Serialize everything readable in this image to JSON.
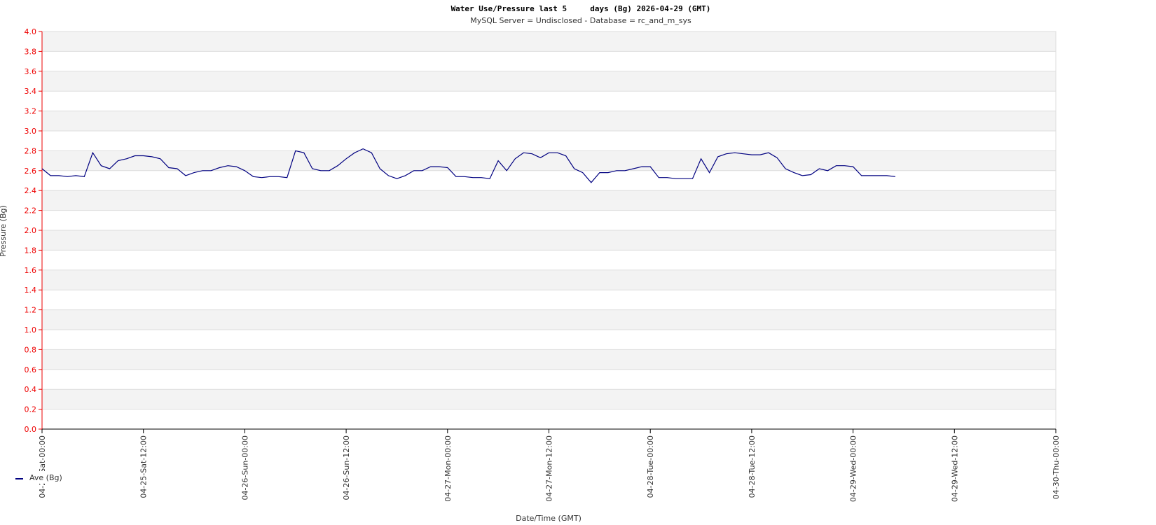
{
  "chart_data": {
    "type": "line",
    "title": "Water Use/Pressure last 5     days (Bg) 2026-04-29 (GMT)",
    "subtitle": "MySQL Server = Undisclosed - Database = rc_and_m_sys",
    "ylabel": "Pressure (Bg)",
    "xlabel": "Date/Time (GMT)",
    "x": [
      "04-25-Sat-00:00",
      "04-25-Sat-01:00",
      "04-25-Sat-02:00",
      "04-25-Sat-03:00",
      "04-25-Sat-04:00",
      "04-25-Sat-05:00",
      "04-25-Sat-06:00",
      "04-25-Sat-07:00",
      "04-25-Sat-08:00",
      "04-25-Sat-09:00",
      "04-25-Sat-10:00",
      "04-25-Sat-11:00",
      "04-25-Sat-12:00",
      "04-25-Sat-13:00",
      "04-25-Sat-14:00",
      "04-25-Sat-15:00",
      "04-25-Sat-16:00",
      "04-25-Sat-17:00",
      "04-25-Sat-18:00",
      "04-25-Sat-19:00",
      "04-25-Sat-20:00",
      "04-25-Sat-21:00",
      "04-25-Sat-22:00",
      "04-25-Sat-23:00",
      "04-26-Sun-00:00",
      "04-26-Sun-01:00",
      "04-26-Sun-02:00",
      "04-26-Sun-03:00",
      "04-26-Sun-04:00",
      "04-26-Sun-05:00",
      "04-26-Sun-06:00",
      "04-26-Sun-07:00",
      "04-26-Sun-08:00",
      "04-26-Sun-09:00",
      "04-26-Sun-10:00",
      "04-26-Sun-11:00",
      "04-26-Sun-12:00",
      "04-26-Sun-13:00",
      "04-26-Sun-14:00",
      "04-26-Sun-15:00",
      "04-26-Sun-16:00",
      "04-26-Sun-17:00",
      "04-26-Sun-18:00",
      "04-26-Sun-19:00",
      "04-26-Sun-20:00",
      "04-26-Sun-21:00",
      "04-26-Sun-22:00",
      "04-26-Sun-23:00",
      "04-27-Mon-00:00",
      "04-27-Mon-01:00",
      "04-27-Mon-02:00",
      "04-27-Mon-03:00",
      "04-27-Mon-04:00",
      "04-27-Mon-05:00",
      "04-27-Mon-06:00",
      "04-27-Mon-07:00",
      "04-27-Mon-08:00",
      "04-27-Mon-09:00",
      "04-27-Mon-10:00",
      "04-27-Mon-11:00",
      "04-27-Mon-12:00",
      "04-27-Mon-13:00",
      "04-27-Mon-14:00",
      "04-27-Mon-15:00",
      "04-27-Mon-16:00",
      "04-27-Mon-17:00",
      "04-27-Mon-18:00",
      "04-27-Mon-19:00",
      "04-27-Mon-20:00",
      "04-27-Mon-21:00",
      "04-27-Mon-22:00",
      "04-27-Mon-23:00",
      "04-28-Tue-00:00",
      "04-28-Tue-01:00",
      "04-28-Tue-02:00",
      "04-28-Tue-03:00",
      "04-28-Tue-04:00",
      "04-28-Tue-05:00",
      "04-28-Tue-06:00",
      "04-28-Tue-07:00",
      "04-28-Tue-08:00",
      "04-28-Tue-09:00",
      "04-28-Tue-10:00",
      "04-28-Tue-11:00",
      "04-28-Tue-12:00",
      "04-28-Tue-13:00",
      "04-28-Tue-14:00",
      "04-28-Tue-15:00",
      "04-28-Tue-16:00",
      "04-28-Tue-17:00",
      "04-28-Tue-18:00",
      "04-28-Tue-19:00",
      "04-28-Tue-20:00",
      "04-28-Tue-21:00",
      "04-28-Tue-22:00",
      "04-28-Tue-23:00",
      "04-29-Wed-00:00",
      "04-29-Wed-01:00",
      "04-29-Wed-02:00",
      "04-29-Wed-03:00",
      "04-29-Wed-04:00",
      "04-29-Wed-05:00"
    ],
    "series": [
      {
        "name": "Ave (Bg)",
        "color": "#000080",
        "values": [
          2.62,
          2.55,
          2.55,
          2.54,
          2.55,
          2.54,
          2.78,
          2.65,
          2.62,
          2.7,
          2.72,
          2.75,
          2.75,
          2.74,
          2.72,
          2.63,
          2.62,
          2.55,
          2.58,
          2.6,
          2.6,
          2.63,
          2.65,
          2.64,
          2.6,
          2.54,
          2.53,
          2.54,
          2.54,
          2.53,
          2.8,
          2.78,
          2.62,
          2.6,
          2.6,
          2.65,
          2.72,
          2.78,
          2.82,
          2.78,
          2.62,
          2.55,
          2.52,
          2.55,
          2.6,
          2.6,
          2.64,
          2.64,
          2.63,
          2.54,
          2.54,
          2.53,
          2.53,
          2.52,
          2.7,
          2.6,
          2.72,
          2.78,
          2.77,
          2.73,
          2.78,
          2.78,
          2.75,
          2.62,
          2.58,
          2.48,
          2.58,
          2.58,
          2.6,
          2.6,
          2.62,
          2.64,
          2.64,
          2.53,
          2.53,
          2.52,
          2.52,
          2.52,
          2.72,
          2.58,
          2.74,
          2.77,
          2.78,
          2.77,
          2.76,
          2.76,
          2.78,
          2.73,
          2.62,
          2.58,
          2.55,
          2.56,
          2.62,
          2.6,
          2.65,
          2.65,
          2.64,
          2.55,
          2.55,
          2.55,
          2.55,
          2.54
        ]
      }
    ],
    "xlim": [
      "04-25-Sat-00:00",
      "04-30-Thu-00:00"
    ],
    "xticks": [
      "04-25-Sat-00:00",
      "04-25-Sat-12:00",
      "04-26-Sun-00:00",
      "04-26-Sun-12:00",
      "04-27-Mon-00:00",
      "04-27-Mon-12:00",
      "04-28-Tue-00:00",
      "04-28-Tue-12:00",
      "04-29-Wed-00:00",
      "04-29-Wed-12:00",
      "04-30-Thu-00:00"
    ],
    "ylim": [
      0,
      4
    ],
    "yticks": [
      {
        "value": 0,
        "label": "0.0"
      },
      0.2,
      0.4,
      0.6,
      0.8,
      {
        "value": 1,
        "label": "1.0"
      },
      1.2,
      1.4,
      1.6,
      1.8,
      {
        "value": 2,
        "label": "2.0"
      },
      2.2,
      2.4,
      2.6,
      2.8,
      {
        "value": 3,
        "label": "3.0"
      },
      3.2,
      3.4,
      3.6,
      3.8,
      {
        "value": 4,
        "label": "4.0"
      }
    ],
    "grid": true
  }
}
